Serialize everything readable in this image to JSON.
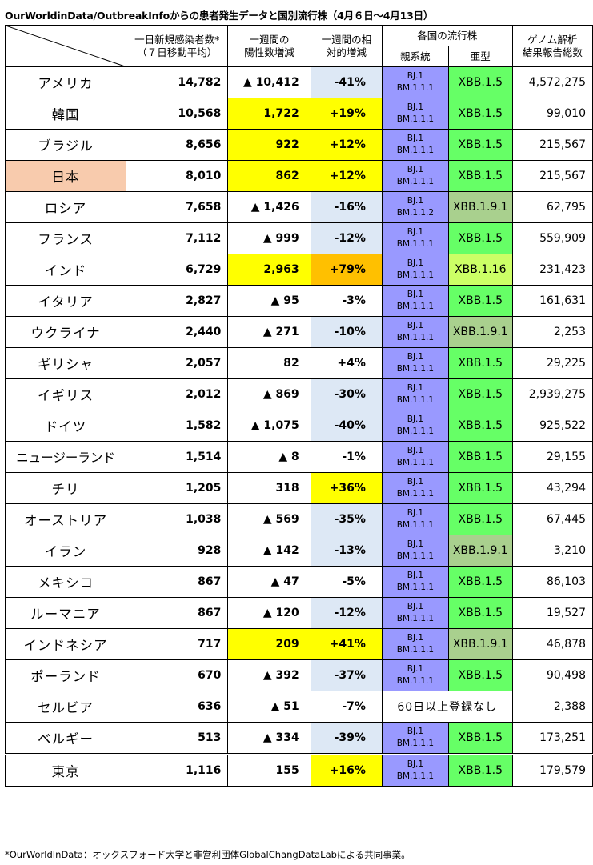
{
  "title": "OurWorldinData/OutbreakInfoからの患者発生データと国別流行株（4月６日～4月13日）",
  "headers": {
    "daily_new_line1": "一日新規感染者数*",
    "daily_new_line2": "（７日移動平均）",
    "weekly_inc_line1": "一週間の",
    "weekly_inc_line2": "陽性数増減",
    "relative_line1": "一週間の相",
    "relative_line2": "対的増減",
    "variants": "各国の流行株",
    "parent": "親系統",
    "sub": "亜型",
    "genome_line1": "ゲノム解析",
    "genome_line2": "結果報告総数"
  },
  "colors": {
    "increase_yellow": "#ffff00",
    "high_increase_orange": "#ffc000",
    "decrease_blue": "#dde8f5",
    "parent_purple": "#9999ff",
    "xbb15_green": "#66ff66",
    "xbb191_olive": "#a9d08e",
    "xbb116_lime": "#ccff66",
    "japan_highlight": "#f8cbad"
  },
  "rows": [
    {
      "country": "アメリカ",
      "daily": "14,782",
      "weekly": "▲ 10,412",
      "relative": "-41%",
      "parent1": "BJ.1",
      "parent2": "BM.1.1.1",
      "sub": "XBB.1.5",
      "genome": "4,572,275",
      "wk_color": "",
      "rel_color": "#dde8f5",
      "sub_color": "#66ff66",
      "country_color": ""
    },
    {
      "country": "韓国",
      "daily": "10,568",
      "weekly": "1,722",
      "relative": "+19%",
      "parent1": "BJ.1",
      "parent2": "BM.1.1.1",
      "sub": "XBB.1.5",
      "genome": "99,010",
      "wk_color": "#ffff00",
      "rel_color": "#ffff00",
      "sub_color": "#66ff66",
      "country_color": ""
    },
    {
      "country": "ブラジル",
      "daily": "8,656",
      "weekly": "922",
      "relative": "+12%",
      "parent1": "BJ.1",
      "parent2": "BM.1.1.1",
      "sub": "XBB.1.5",
      "genome": "215,567",
      "wk_color": "#ffff00",
      "rel_color": "#ffff00",
      "sub_color": "#66ff66",
      "country_color": ""
    },
    {
      "country": "日本",
      "daily": "8,010",
      "weekly": "862",
      "relative": "+12%",
      "parent1": "BJ.1",
      "parent2": "BM.1.1.1",
      "sub": "XBB.1.5",
      "genome": "215,567",
      "wk_color": "#ffff00",
      "rel_color": "#ffff00",
      "sub_color": "#66ff66",
      "country_color": "#f8cbad"
    },
    {
      "country": "ロシア",
      "daily": "7,658",
      "weekly": "▲ 1,426",
      "relative": "-16%",
      "parent1": "BJ.1",
      "parent2": "BM.1.1.2",
      "sub": "XBB.1.9.1",
      "genome": "62,795",
      "wk_color": "",
      "rel_color": "#dde8f5",
      "sub_color": "#a9d08e",
      "country_color": ""
    },
    {
      "country": "フランス",
      "daily": "7,112",
      "weekly": "▲ 999",
      "relative": "-12%",
      "parent1": "BJ.1",
      "parent2": "BM.1.1.1",
      "sub": "XBB.1.5",
      "genome": "559,909",
      "wk_color": "",
      "rel_color": "#dde8f5",
      "sub_color": "#66ff66",
      "country_color": ""
    },
    {
      "country": "インド",
      "daily": "6,729",
      "weekly": "2,963",
      "relative": "+79%",
      "parent1": "BJ.1",
      "parent2": "BM.1.1.1",
      "sub": "XBB.1.16",
      "genome": "231,423",
      "wk_color": "#ffff00",
      "rel_color": "#ffc000",
      "sub_color": "#ccff66",
      "country_color": ""
    },
    {
      "country": "イタリア",
      "daily": "2,827",
      "weekly": "▲ 95",
      "relative": "-3%",
      "parent1": "BJ.1",
      "parent2": "BM.1.1.1",
      "sub": "XBB.1.5",
      "genome": "161,631",
      "wk_color": "",
      "rel_color": "",
      "sub_color": "#66ff66",
      "country_color": ""
    },
    {
      "country": "ウクライナ",
      "daily": "2,440",
      "weekly": "▲ 271",
      "relative": "-10%",
      "parent1": "BJ.1",
      "parent2": "BM.1.1.1",
      "sub": "XBB.1.9.1",
      "genome": "2,253",
      "wk_color": "",
      "rel_color": "#dde8f5",
      "sub_color": "#a9d08e",
      "country_color": ""
    },
    {
      "country": "ギリシャ",
      "daily": "2,057",
      "weekly": "82",
      "relative": "+4%",
      "parent1": "BJ.1",
      "parent2": "BM.1.1.1",
      "sub": "XBB.1.5",
      "genome": "29,225",
      "wk_color": "",
      "rel_color": "",
      "sub_color": "#66ff66",
      "country_color": ""
    },
    {
      "country": "イギリス",
      "daily": "2,012",
      "weekly": "▲ 869",
      "relative": "-30%",
      "parent1": "BJ.1",
      "parent2": "BM.1.1.1",
      "sub": "XBB.1.5",
      "genome": "2,939,275",
      "wk_color": "",
      "rel_color": "#dde8f5",
      "sub_color": "#66ff66",
      "country_color": ""
    },
    {
      "country": "ドイツ",
      "daily": "1,582",
      "weekly": "▲ 1,075",
      "relative": "-40%",
      "parent1": "BJ.1",
      "parent2": "BM.1.1.1",
      "sub": "XBB.1.5",
      "genome": "925,522",
      "wk_color": "",
      "rel_color": "#dde8f5",
      "sub_color": "#66ff66",
      "country_color": ""
    },
    {
      "country": "ニュージーランド",
      "daily": "1,514",
      "weekly": "▲ 8",
      "relative": "-1%",
      "parent1": "BJ.1",
      "parent2": "BM.1.1.1",
      "sub": "XBB.1.5",
      "genome": "29,155",
      "wk_color": "",
      "rel_color": "",
      "sub_color": "#66ff66",
      "country_color": ""
    },
    {
      "country": "チリ",
      "daily": "1,205",
      "weekly": "318",
      "relative": "+36%",
      "parent1": "BJ.1",
      "parent2": "BM.1.1.1",
      "sub": "XBB.1.5",
      "genome": "43,294",
      "wk_color": "",
      "rel_color": "#ffff00",
      "sub_color": "#66ff66",
      "country_color": ""
    },
    {
      "country": "オーストリア",
      "daily": "1,038",
      "weekly": "▲ 569",
      "relative": "-35%",
      "parent1": "BJ.1",
      "parent2": "BM.1.1.1",
      "sub": "XBB.1.5",
      "genome": "67,445",
      "wk_color": "",
      "rel_color": "#dde8f5",
      "sub_color": "#66ff66",
      "country_color": ""
    },
    {
      "country": "イラン",
      "daily": "928",
      "weekly": "▲ 142",
      "relative": "-13%",
      "parent1": "BJ.1",
      "parent2": "BM.1.1.1",
      "sub": "XBB.1.9.1",
      "genome": "3,210",
      "wk_color": "",
      "rel_color": "#dde8f5",
      "sub_color": "#a9d08e",
      "country_color": ""
    },
    {
      "country": "メキシコ",
      "daily": "867",
      "weekly": "▲ 47",
      "relative": "-5%",
      "parent1": "BJ.1",
      "parent2": "BM.1.1.1",
      "sub": "XBB.1.5",
      "genome": "86,103",
      "wk_color": "",
      "rel_color": "",
      "sub_color": "#66ff66",
      "country_color": ""
    },
    {
      "country": "ルーマニア",
      "daily": "867",
      "weekly": "▲ 120",
      "relative": "-12%",
      "parent1": "BJ.1",
      "parent2": "BM.1.1.1",
      "sub": "XBB.1.5",
      "genome": "19,527",
      "wk_color": "",
      "rel_color": "#dde8f5",
      "sub_color": "#66ff66",
      "country_color": ""
    },
    {
      "country": "インドネシア",
      "daily": "717",
      "weekly": "209",
      "relative": "+41%",
      "parent1": "BJ.1",
      "parent2": "BM.1.1.1",
      "sub": "XBB.1.9.1",
      "genome": "46,878",
      "wk_color": "#ffff00",
      "rel_color": "#ffff00",
      "sub_color": "#a9d08e",
      "country_color": ""
    },
    {
      "country": "ポーランド",
      "daily": "670",
      "weekly": "▲ 392",
      "relative": "-37%",
      "parent1": "BJ.1",
      "parent2": "BM.1.1.1",
      "sub": "XBB.1.5",
      "genome": "90,498",
      "wk_color": "",
      "rel_color": "#dde8f5",
      "sub_color": "#66ff66",
      "country_color": ""
    },
    {
      "country": "セルビア",
      "daily": "636",
      "weekly": "▲ 51",
      "relative": "-7%",
      "none_text": "60日以上登録なし",
      "genome": "2,388",
      "wk_color": "",
      "rel_color": "",
      "sub_color": "",
      "country_color": ""
    },
    {
      "country": "ベルギー",
      "daily": "513",
      "weekly": "▲ 334",
      "relative": "-39%",
      "parent1": "BJ.1",
      "parent2": "BM.1.1.1",
      "sub": "XBB.1.5",
      "genome": "173,251",
      "wk_color": "",
      "rel_color": "#dde8f5",
      "sub_color": "#66ff66",
      "country_color": ""
    },
    {
      "country": "東京",
      "daily": "1,116",
      "weekly": "155",
      "relative": "+16%",
      "parent1": "BJ.1",
      "parent2": "BM.1.1.1",
      "sub": "XBB.1.5",
      "genome": "179,579",
      "wk_color": "",
      "rel_color": "#ffff00",
      "sub_color": "#66ff66",
      "country_color": "",
      "is_tokyo": true
    }
  ],
  "footnote": "*OurWorldInData：オックスフォード大学と非営利団体GlobalChangDataLabによる共同事業。"
}
